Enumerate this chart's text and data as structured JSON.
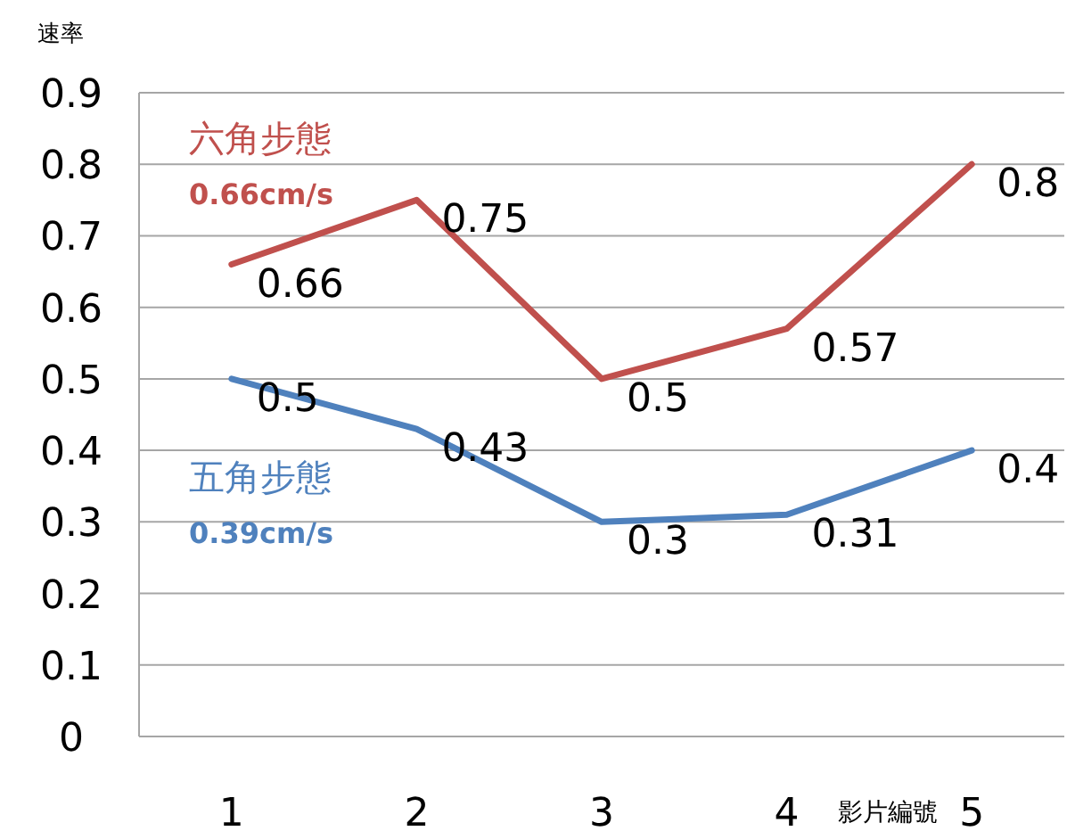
{
  "chart_data": {
    "type": "line",
    "ylabel": "速率",
    "xlabel": "影片編號",
    "categories": [
      "1",
      "2",
      "3",
      "4",
      "5"
    ],
    "series": [
      {
        "name": "六角步態",
        "color": "#c0504d",
        "values": [
          0.66,
          0.75,
          0.5,
          0.57,
          0.8
        ]
      },
      {
        "name": "五角步態",
        "color": "#4f81bd",
        "values": [
          0.5,
          0.43,
          0.3,
          0.31,
          0.4
        ]
      }
    ],
    "annotations": [
      "0.66cm/s",
      "0.39cm/s"
    ],
    "ylim": [
      0,
      0.9
    ],
    "yticks": [
      0,
      0.1,
      0.2,
      0.3,
      0.4,
      0.5,
      0.6,
      0.7,
      0.8,
      0.9
    ],
    "grid": "y",
    "data_labels": true,
    "marker": "none",
    "line_style": "solid"
  }
}
